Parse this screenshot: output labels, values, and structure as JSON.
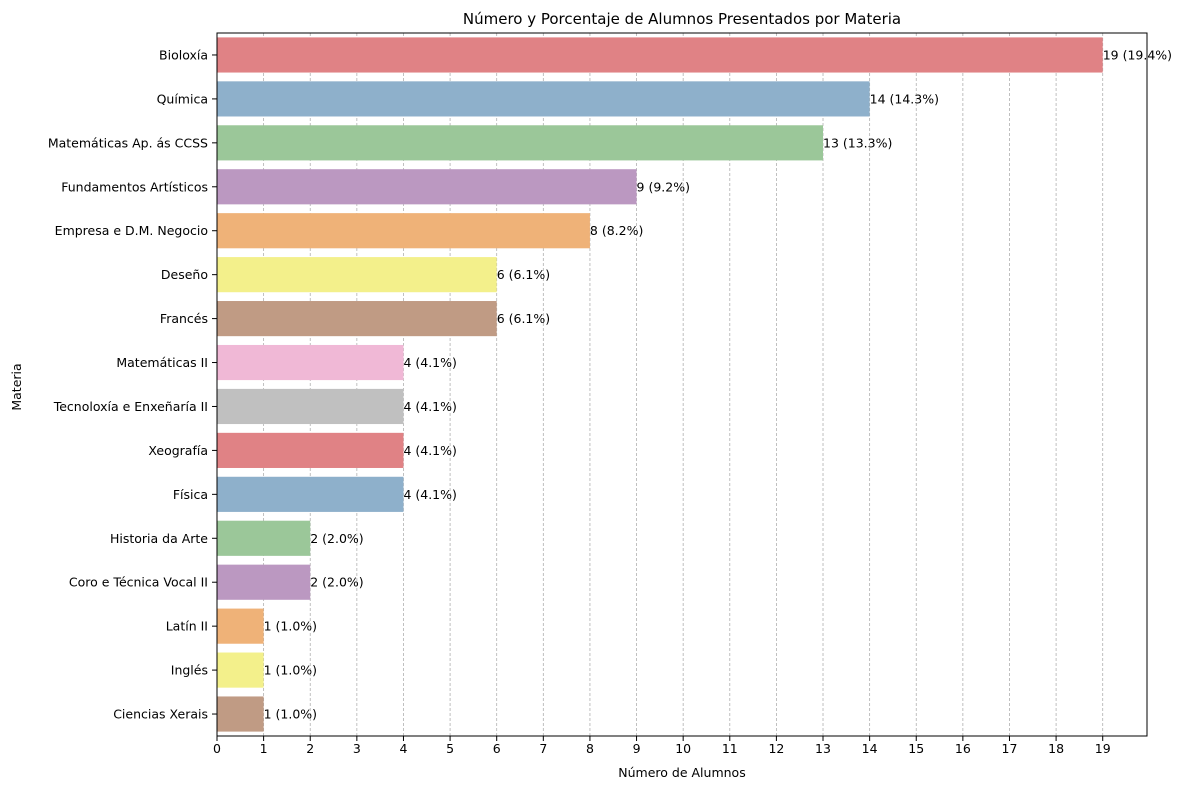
{
  "chart_data": {
    "type": "bar",
    "orientation": "horizontal",
    "title": "Número y Porcentaje de Alumnos Presentados por Materia",
    "xlabel": "Número de Alumnos",
    "ylabel": "Materia",
    "xlim": [
      0,
      19.95
    ],
    "xticks": [
      0,
      1,
      2,
      3,
      4,
      5,
      6,
      7,
      8,
      9,
      10,
      11,
      12,
      13,
      14,
      15,
      16,
      17,
      18,
      19
    ],
    "grid": "x-dashed",
    "categories": [
      "Bioloxía",
      "Química",
      "Matemáticas Ap. ás CCSS",
      "Fundamentos Artísticos",
      "Empresa e D.M. Negocio",
      "Deseño",
      "Francés",
      "Matemáticas II",
      "Tecnoloxía e Enxeñaría II",
      "Xeografía",
      "Física",
      "Historia da Arte",
      "Coro e Técnica Vocal II",
      "Latín II",
      "Inglés",
      "Ciencias Xerais"
    ],
    "values": [
      19,
      14,
      13,
      9,
      8,
      6,
      6,
      4,
      4,
      4,
      4,
      2,
      2,
      1,
      1,
      1
    ],
    "labels": [
      "19 (19.4%)",
      "14 (14.3%)",
      "13 (13.3%)",
      "9 (9.2%)",
      "8 (8.2%)",
      "6 (6.1%)",
      "6 (6.1%)",
      "4 (4.1%)",
      "4 (4.1%)",
      "4 (4.1%)",
      "4 (4.1%)",
      "2 (2.0%)",
      "2 (2.0%)",
      "1 (1.0%)",
      "1 (1.0%)",
      "1 (1.0%)"
    ],
    "colors": [
      "#e08285",
      "#8eb0cb",
      "#9bc799",
      "#bb98c1",
      "#efb278",
      "#f3f08b",
      "#c09b84",
      "#f0b8d6",
      "#c0c0c0",
      "#e08285",
      "#8eb0cb",
      "#9bc799",
      "#bb98c1",
      "#efb278",
      "#f3f08b",
      "#c09b84"
    ]
  }
}
